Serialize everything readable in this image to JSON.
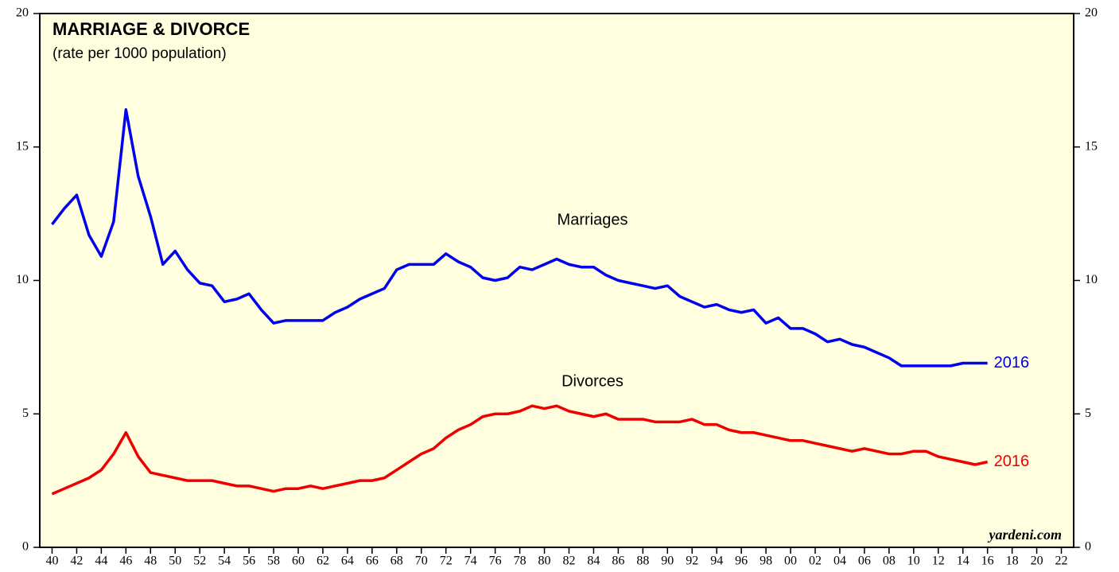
{
  "chart_data": {
    "type": "line",
    "title": "MARRIAGE & DIVORCE",
    "subtitle": "(rate per 1000 population)",
    "source": "yardeni.com",
    "x": [
      1940,
      1941,
      1942,
      1943,
      1944,
      1945,
      1946,
      1947,
      1948,
      1949,
      1950,
      1951,
      1952,
      1953,
      1954,
      1955,
      1956,
      1957,
      1958,
      1959,
      1960,
      1961,
      1962,
      1963,
      1964,
      1965,
      1966,
      1967,
      1968,
      1969,
      1970,
      1971,
      1972,
      1973,
      1974,
      1975,
      1976,
      1977,
      1978,
      1979,
      1980,
      1981,
      1982,
      1983,
      1984,
      1985,
      1986,
      1987,
      1988,
      1989,
      1990,
      1991,
      1992,
      1993,
      1994,
      1995,
      1996,
      1997,
      1998,
      1999,
      2000,
      2001,
      2002,
      2003,
      2004,
      2005,
      2006,
      2007,
      2008,
      2009,
      2010,
      2011,
      2012,
      2013,
      2014,
      2015,
      2016
    ],
    "series": [
      {
        "name": "Marriages",
        "color": "#0000ee",
        "end_label": "2016",
        "values": [
          12.1,
          12.7,
          13.2,
          11.7,
          10.9,
          12.2,
          16.4,
          13.9,
          12.4,
          10.6,
          11.1,
          10.4,
          9.9,
          9.8,
          9.2,
          9.3,
          9.5,
          8.9,
          8.4,
          8.5,
          8.5,
          8.5,
          8.5,
          8.8,
          9.0,
          9.3,
          9.5,
          9.7,
          10.4,
          10.6,
          10.6,
          10.6,
          11.0,
          10.7,
          10.5,
          10.1,
          10.0,
          10.1,
          10.5,
          10.4,
          10.6,
          10.8,
          10.6,
          10.5,
          10.5,
          10.2,
          10.0,
          9.9,
          9.8,
          9.7,
          9.8,
          9.4,
          9.2,
          9.0,
          9.1,
          8.9,
          8.8,
          8.9,
          8.4,
          8.6,
          8.2,
          8.2,
          8.0,
          7.7,
          7.8,
          7.6,
          7.5,
          7.3,
          7.1,
          6.8,
          6.8,
          6.8,
          6.8,
          6.8,
          6.9,
          6.9,
          6.9
        ]
      },
      {
        "name": "Divorces",
        "color": "#ee0000",
        "end_label": "2016",
        "values": [
          2.0,
          2.2,
          2.4,
          2.6,
          2.9,
          3.5,
          4.3,
          3.4,
          2.8,
          2.7,
          2.6,
          2.5,
          2.5,
          2.5,
          2.4,
          2.3,
          2.3,
          2.2,
          2.1,
          2.2,
          2.2,
          2.3,
          2.2,
          2.3,
          2.4,
          2.5,
          2.5,
          2.6,
          2.9,
          3.2,
          3.5,
          3.7,
          4.1,
          4.4,
          4.6,
          4.9,
          5.0,
          5.0,
          5.1,
          5.3,
          5.2,
          5.3,
          5.1,
          5.0,
          4.9,
          5.0,
          4.8,
          4.8,
          4.8,
          4.7,
          4.7,
          4.7,
          4.8,
          4.6,
          4.6,
          4.4,
          4.3,
          4.3,
          4.2,
          4.1,
          4.0,
          4.0,
          3.9,
          3.8,
          3.7,
          3.6,
          3.7,
          3.6,
          3.5,
          3.5,
          3.6,
          3.6,
          3.4,
          3.3,
          3.2,
          3.1,
          3.2
        ]
      }
    ],
    "xlim": [
      1939,
      2023
    ],
    "xticks": [
      {
        "value": 1940,
        "label": "40"
      },
      {
        "value": 1942,
        "label": "42"
      },
      {
        "value": 1944,
        "label": "44"
      },
      {
        "value": 1946,
        "label": "46"
      },
      {
        "value": 1948,
        "label": "48"
      },
      {
        "value": 1950,
        "label": "50"
      },
      {
        "value": 1952,
        "label": "52"
      },
      {
        "value": 1954,
        "label": "54"
      },
      {
        "value": 1956,
        "label": "56"
      },
      {
        "value": 1958,
        "label": "58"
      },
      {
        "value": 1960,
        "label": "60"
      },
      {
        "value": 1962,
        "label": "62"
      },
      {
        "value": 1964,
        "label": "64"
      },
      {
        "value": 1966,
        "label": "66"
      },
      {
        "value": 1968,
        "label": "68"
      },
      {
        "value": 1970,
        "label": "70"
      },
      {
        "value": 1972,
        "label": "72"
      },
      {
        "value": 1974,
        "label": "74"
      },
      {
        "value": 1976,
        "label": "76"
      },
      {
        "value": 1978,
        "label": "78"
      },
      {
        "value": 1980,
        "label": "80"
      },
      {
        "value": 1982,
        "label": "82"
      },
      {
        "value": 1984,
        "label": "84"
      },
      {
        "value": 1986,
        "label": "86"
      },
      {
        "value": 1988,
        "label": "88"
      },
      {
        "value": 1990,
        "label": "90"
      },
      {
        "value": 1992,
        "label": "92"
      },
      {
        "value": 1994,
        "label": "94"
      },
      {
        "value": 1996,
        "label": "96"
      },
      {
        "value": 1998,
        "label": "98"
      },
      {
        "value": 2000,
        "label": "00"
      },
      {
        "value": 2002,
        "label": "02"
      },
      {
        "value": 2004,
        "label": "04"
      },
      {
        "value": 2006,
        "label": "06"
      },
      {
        "value": 2008,
        "label": "08"
      },
      {
        "value": 2010,
        "label": "10"
      },
      {
        "value": 2012,
        "label": "12"
      },
      {
        "value": 2014,
        "label": "14"
      },
      {
        "value": 2016,
        "label": "16"
      },
      {
        "value": 2018,
        "label": "18"
      },
      {
        "value": 2020,
        "label": "20"
      },
      {
        "value": 2022,
        "label": "22"
      }
    ],
    "ylim": [
      0,
      20
    ],
    "yticks": [
      0,
      5,
      10,
      15,
      20
    ],
    "y2lim": [
      0,
      20
    ],
    "y2ticks": [
      0,
      5,
      10,
      15,
      20
    ],
    "background": "#ffffe0"
  }
}
